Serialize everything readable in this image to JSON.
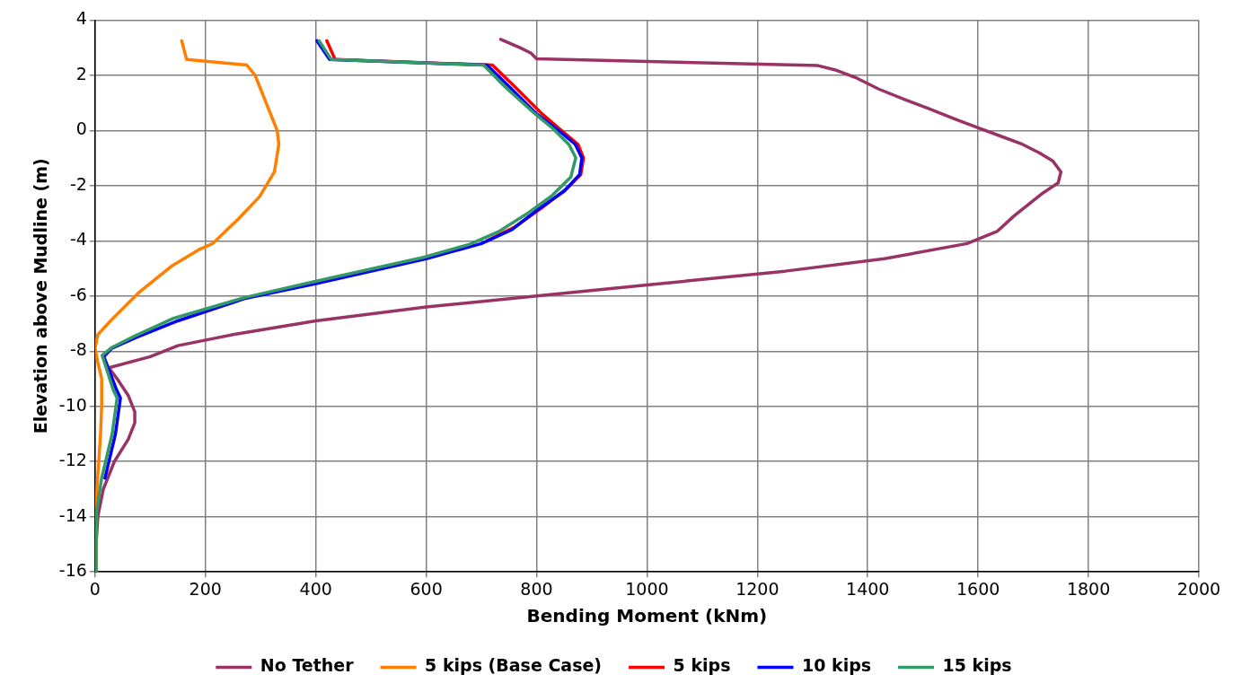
{
  "chart_data": {
    "type": "line",
    "xlabel": "Bending Moment (kNm)",
    "ylabel": "Elevation above Mudline (m)",
    "xlim": [
      0,
      2000
    ],
    "xticks": [
      0,
      200,
      400,
      600,
      800,
      1000,
      1200,
      1400,
      1600,
      1800,
      2000
    ],
    "ylim": [
      -16,
      4
    ],
    "yticks": [
      -16,
      -14,
      -12,
      -10,
      -8,
      -6,
      -4,
      -2,
      0,
      2,
      4
    ],
    "grid": true,
    "legend": "bottom",
    "marker": "none",
    "line_style": "solid",
    "series": [
      {
        "name": "No Tether",
        "color": "#993366",
        "x": [
          735,
          770,
          790,
          800,
          1310,
          1340,
          1380,
          1420,
          1470,
          1510,
          1560,
          1600,
          1640,
          1680,
          1710,
          1735,
          1750,
          1745,
          1715,
          1690,
          1665,
          1635,
          1580,
          1430,
          1250,
          1000,
          800,
          600,
          400,
          250,
          150,
          100,
          25,
          40,
          60,
          72,
          72,
          60,
          35,
          15,
          5,
          2,
          2
        ],
        "values": [
          3.3,
          3.0,
          2.8,
          2.6,
          2.35,
          2.2,
          1.9,
          1.5,
          1.1,
          0.8,
          0.4,
          0.1,
          -0.2,
          -0.5,
          -0.8,
          -1.1,
          -1.5,
          -1.9,
          -2.3,
          -2.7,
          -3.1,
          -3.65,
          -4.1,
          -4.65,
          -5.1,
          -5.6,
          -6.0,
          -6.4,
          -6.9,
          -7.4,
          -7.8,
          -8.2,
          -8.6,
          -9.0,
          -9.6,
          -10.2,
          -10.6,
          -11.2,
          -12.0,
          -13.0,
          -14.0,
          -15.0,
          -16.0
        ]
      },
      {
        "name": "5 kips (Base Case)",
        "color": "#ff7f00",
        "x": [
          157,
          166,
          275,
          290,
          300,
          310,
          320,
          330,
          333,
          331,
          325,
          310,
          298,
          260,
          213,
          190,
          140,
          78,
          28,
          5,
          0,
          5,
          12,
          12,
          10,
          5,
          2,
          2
        ],
        "values": [
          3.25,
          2.57,
          2.37,
          2.0,
          1.5,
          1.0,
          0.5,
          0.0,
          -0.5,
          -0.75,
          -1.5,
          -2.0,
          -2.4,
          -3.2,
          -4.1,
          -4.3,
          -4.9,
          -5.9,
          -6.9,
          -7.4,
          -7.9,
          -8.4,
          -9.0,
          -10.0,
          -11.0,
          -12.5,
          -13.5,
          -16.0
        ]
      },
      {
        "name": "5 kips",
        "color": "#ff0000",
        "x": [
          420,
          435,
          720,
          760,
          810,
          845,
          875,
          885,
          880,
          855,
          810,
          760,
          710
        ],
        "values": [
          3.25,
          2.57,
          2.37,
          1.6,
          0.6,
          0.0,
          -0.5,
          -1.0,
          -1.6,
          -2.1,
          -2.8,
          -3.5,
          -4.0
        ]
      },
      {
        "name": "10 kips",
        "color": "#0000ff",
        "x": [
          402,
          425,
          710,
          750,
          800,
          840,
          870,
          882,
          878,
          850,
          800,
          755,
          700,
          600,
          400,
          270,
          150,
          75,
          30,
          16,
          39,
          46,
          37,
          18
        ],
        "values": [
          3.25,
          2.57,
          2.37,
          1.6,
          0.6,
          0.0,
          -0.5,
          -1.0,
          -1.6,
          -2.2,
          -2.9,
          -3.6,
          -4.1,
          -4.65,
          -5.55,
          -6.1,
          -6.9,
          -7.5,
          -7.9,
          -8.2,
          -9.4,
          -9.7,
          -11.0,
          -12.6
        ]
      },
      {
        "name": "15 kips",
        "color": "#339966",
        "x": [
          406,
          428,
          704,
          742,
          795,
          830,
          859,
          871,
          862,
          827,
          786,
          731,
          678,
          595,
          399,
          272,
          142,
          72,
          31,
          13,
          33,
          40,
          31,
          12,
          2,
          2
        ],
        "values": [
          3.25,
          2.57,
          2.37,
          1.6,
          0.64,
          0.06,
          -0.52,
          -0.99,
          -1.69,
          -2.38,
          -2.97,
          -3.67,
          -4.13,
          -4.6,
          -5.47,
          -6.05,
          -6.81,
          -7.45,
          -7.86,
          -8.15,
          -9.4,
          -9.7,
          -11.0,
          -12.6,
          -13.9,
          -16.0
        ]
      }
    ]
  }
}
